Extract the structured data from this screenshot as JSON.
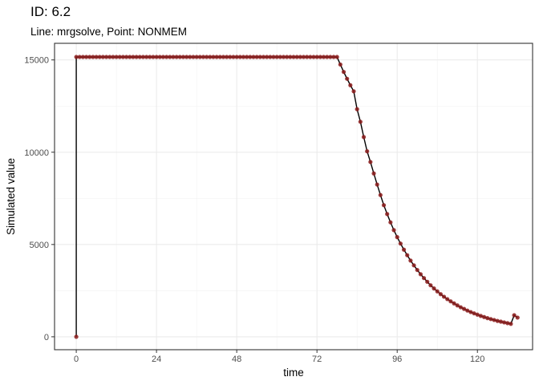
{
  "chart_data": {
    "type": "line",
    "title": "ID: 6.2",
    "subtitle": "Line: mrgsolve, Point: NONMEM",
    "xlabel": "time",
    "ylabel": "Simulated value",
    "xlim": [
      -6.5,
      136.5
    ],
    "ylim": [
      -700,
      15900
    ],
    "x_ticks": [
      0,
      24,
      48,
      72,
      96,
      120
    ],
    "x_tick_labels": [
      "0",
      "24",
      "48",
      "72",
      "96",
      "120"
    ],
    "y_ticks": [
      0,
      5000,
      10000,
      15000
    ],
    "y_tick_labels": [
      "0",
      "5000",
      "10000",
      "15000"
    ],
    "grid": true,
    "theme": "bw",
    "line_color": "#000000",
    "point_color": "#8b1a1a",
    "series": [
      {
        "role": "line",
        "x": [
          0,
          0,
          78,
          79,
          80,
          81,
          82,
          83,
          84,
          85,
          86,
          87,
          88,
          89,
          90,
          91,
          92,
          93,
          94,
          95,
          96,
          97,
          98,
          99,
          100,
          101,
          102,
          103,
          104,
          105,
          106,
          107,
          108,
          109,
          110,
          111,
          112,
          113,
          114,
          115,
          116,
          117,
          118,
          119,
          120,
          121,
          122,
          123,
          124,
          125,
          126,
          127,
          128,
          129,
          130,
          131,
          132
        ],
        "y": [
          0,
          15160,
          15160,
          14750,
          14350,
          13980,
          13630,
          13300,
          12330,
          11650,
          10820,
          10050,
          9470,
          8850,
          8250,
          7680,
          7130,
          6650,
          6200,
          5780,
          5400,
          5050,
          4720,
          4420,
          4130,
          3870,
          3620,
          3390,
          3180,
          2980,
          2790,
          2620,
          2460,
          2310,
          2170,
          2040,
          1920,
          1810,
          1700,
          1600,
          1510,
          1420,
          1340,
          1270,
          1200,
          1130,
          1070,
          1010,
          960,
          910,
          860,
          820,
          780,
          740,
          700,
          1170,
          1040
        ]
      },
      {
        "role": "points",
        "x": [
          0,
          0,
          1,
          2,
          3,
          4,
          5,
          6,
          7,
          8,
          9,
          10,
          11,
          12,
          13,
          14,
          15,
          16,
          17,
          18,
          19,
          20,
          21,
          22,
          23,
          24,
          25,
          26,
          27,
          28,
          29,
          30,
          31,
          32,
          33,
          34,
          35,
          36,
          37,
          38,
          39,
          40,
          41,
          42,
          43,
          44,
          45,
          46,
          47,
          48,
          49,
          50,
          51,
          52,
          53,
          54,
          55,
          56,
          57,
          58,
          59,
          60,
          61,
          62,
          63,
          64,
          65,
          66,
          67,
          68,
          69,
          70,
          71,
          72,
          73,
          74,
          75,
          76,
          77,
          78,
          79,
          80,
          81,
          82,
          83,
          84,
          85,
          86,
          87,
          88,
          89,
          90,
          91,
          92,
          93,
          94,
          95,
          96,
          97,
          98,
          99,
          100,
          101,
          102,
          103,
          104,
          105,
          106,
          107,
          108,
          109,
          110,
          111,
          112,
          113,
          114,
          115,
          116,
          117,
          118,
          119,
          120,
          121,
          122,
          123,
          124,
          125,
          126,
          127,
          128,
          129,
          130,
          131,
          132
        ],
        "y": [
          0,
          15160,
          15160,
          15160,
          15160,
          15160,
          15160,
          15160,
          15160,
          15160,
          15160,
          15160,
          15160,
          15160,
          15160,
          15160,
          15160,
          15160,
          15160,
          15160,
          15160,
          15160,
          15160,
          15160,
          15160,
          15160,
          15160,
          15160,
          15160,
          15160,
          15160,
          15160,
          15160,
          15160,
          15160,
          15160,
          15160,
          15160,
          15160,
          15160,
          15160,
          15160,
          15160,
          15160,
          15160,
          15160,
          15160,
          15160,
          15160,
          15160,
          15160,
          15160,
          15160,
          15160,
          15160,
          15160,
          15160,
          15160,
          15160,
          15160,
          15160,
          15160,
          15160,
          15160,
          15160,
          15160,
          15160,
          15160,
          15160,
          15160,
          15160,
          15160,
          15160,
          15160,
          15160,
          15160,
          15160,
          15160,
          15160,
          15160,
          14750,
          14350,
          13980,
          13630,
          13300,
          12330,
          11650,
          10820,
          10050,
          9470,
          8850,
          8250,
          7680,
          7130,
          6650,
          6200,
          5780,
          5400,
          5050,
          4720,
          4420,
          4130,
          3870,
          3620,
          3390,
          3180,
          2980,
          2790,
          2620,
          2460,
          2310,
          2170,
          2040,
          1920,
          1810,
          1700,
          1600,
          1510,
          1420,
          1340,
          1270,
          1200,
          1130,
          1070,
          1010,
          960,
          910,
          860,
          820,
          780,
          740,
          700,
          1170,
          1040
        ]
      }
    ]
  }
}
